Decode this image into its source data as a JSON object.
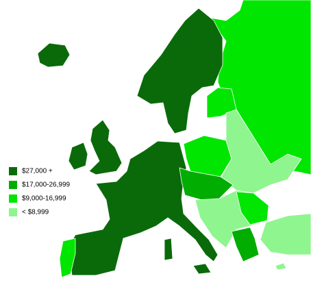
{
  "legend": {
    "items": [
      {
        "label": "$27,000 +",
        "color": "#0a6a0a"
      },
      {
        "label": "$17,000-26,999",
        "color": "#00ad00"
      },
      {
        "label": "$9,000-16,999",
        "color": "#00e600"
      },
      {
        "label": "< $8,999",
        "color": "#8ff58f"
      }
    ]
  }
}
